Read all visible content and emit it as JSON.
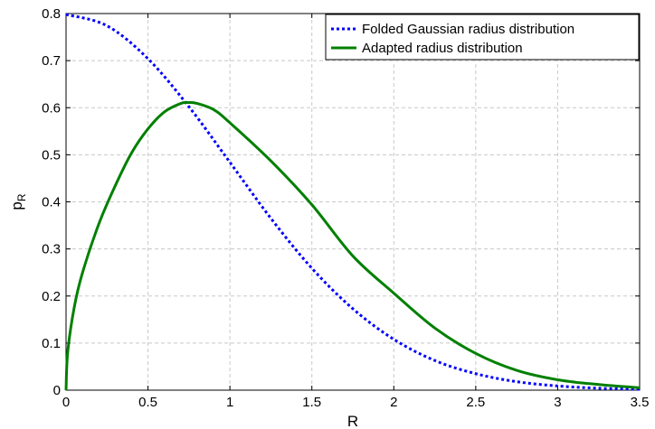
{
  "chart_data": {
    "type": "line",
    "title": "",
    "xlabel": "R",
    "ylabel": "p",
    "ylabel_subscript": "R",
    "xlim": [
      0,
      3.5
    ],
    "ylim": [
      0,
      0.8
    ],
    "grid": true,
    "legend_position": "top-right",
    "x_ticks": [
      0,
      0.5,
      1,
      1.5,
      2,
      2.5,
      3,
      3.5
    ],
    "x_tick_labels": [
      "0",
      "0.5",
      "1",
      "1.5",
      "2",
      "2.5",
      "3",
      "3.5"
    ],
    "y_ticks": [
      0,
      0.1,
      0.2,
      0.3,
      0.4,
      0.5,
      0.6,
      0.7,
      0.8
    ],
    "y_tick_labels": [
      "0",
      "0.1",
      "0.2",
      "0.3",
      "0.4",
      "0.5",
      "0.6",
      "0.7",
      "0.8"
    ],
    "series": [
      {
        "name": "Folded Gaussian radius distribution",
        "color": "#0000ff",
        "style": "dotted",
        "x": [
          0,
          0.25,
          0.5,
          0.75,
          1.0,
          1.25,
          1.5,
          1.75,
          2.0,
          2.25,
          2.5,
          2.75,
          3.0,
          3.25,
          3.5
        ],
        "y": [
          0.798,
          0.774,
          0.704,
          0.602,
          0.484,
          0.365,
          0.259,
          0.173,
          0.108,
          0.063,
          0.035,
          0.018,
          0.009,
          0.004,
          0.002
        ]
      },
      {
        "name": "Adapted radius distribution",
        "color": "#008000",
        "style": "solid",
        "x": [
          0,
          0.01,
          0.05,
          0.1,
          0.2,
          0.3,
          0.4,
          0.5,
          0.6,
          0.7,
          0.75,
          0.8,
          0.9,
          1.0,
          1.25,
          1.5,
          1.75,
          2.0,
          2.25,
          2.5,
          2.75,
          3.0,
          3.25,
          3.5
        ],
        "y": [
          0,
          0.08,
          0.176,
          0.249,
          0.353,
          0.434,
          0.504,
          0.555,
          0.591,
          0.609,
          0.611,
          0.609,
          0.596,
          0.568,
          0.487,
          0.394,
          0.285,
          0.206,
          0.132,
          0.078,
          0.042,
          0.022,
          0.012,
          0.005
        ]
      }
    ]
  }
}
